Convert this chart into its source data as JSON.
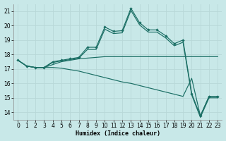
{
  "xlabel": "Humidex (Indice chaleur)",
  "bg_color": "#c8e8e8",
  "grid_color": "#afd8d8",
  "line_color": "#1a6e64",
  "xlim": [
    -0.5,
    23.5
  ],
  "ylim": [
    13.5,
    21.5
  ],
  "yticks": [
    14,
    15,
    16,
    17,
    18,
    19,
    20,
    21
  ],
  "xticks": [
    0,
    1,
    2,
    3,
    4,
    5,
    6,
    7,
    8,
    9,
    10,
    11,
    12,
    13,
    14,
    15,
    16,
    17,
    18,
    19,
    20,
    21,
    22,
    23
  ],
  "x": [
    0,
    1,
    2,
    3,
    4,
    5,
    6,
    7,
    8,
    9,
    10,
    11,
    12,
    13,
    14,
    15,
    16,
    17,
    18,
    19,
    20,
    21,
    22,
    23
  ],
  "line_main": [
    17.6,
    17.2,
    17.1,
    17.1,
    17.5,
    17.6,
    17.7,
    17.8,
    18.5,
    18.5,
    19.9,
    19.6,
    19.65,
    21.2,
    20.2,
    19.7,
    19.7,
    19.3,
    18.75,
    19.0,
    15.3,
    13.75,
    15.1,
    15.1
  ],
  "line_env": [
    17.6,
    17.2,
    17.1,
    17.1,
    17.45,
    17.55,
    17.65,
    17.75,
    18.35,
    18.35,
    19.75,
    19.45,
    19.5,
    21.05,
    20.05,
    19.55,
    19.55,
    19.15,
    18.6,
    18.85,
    15.2,
    13.65,
    15.0,
    15.0
  ],
  "line_flat": [
    17.6,
    17.2,
    17.1,
    17.1,
    17.3,
    17.5,
    17.6,
    17.7,
    17.75,
    17.8,
    17.85,
    17.85,
    17.85,
    17.85,
    17.85,
    17.85,
    17.85,
    17.85,
    17.85,
    17.85,
    17.85,
    17.85,
    17.85,
    17.85
  ],
  "line_low": [
    17.6,
    17.2,
    17.1,
    17.1,
    17.1,
    17.05,
    16.95,
    16.85,
    16.7,
    16.55,
    16.4,
    16.25,
    16.1,
    16.0,
    15.85,
    15.7,
    15.55,
    15.4,
    15.25,
    15.1,
    16.35,
    13.75,
    15.1,
    15.1
  ]
}
